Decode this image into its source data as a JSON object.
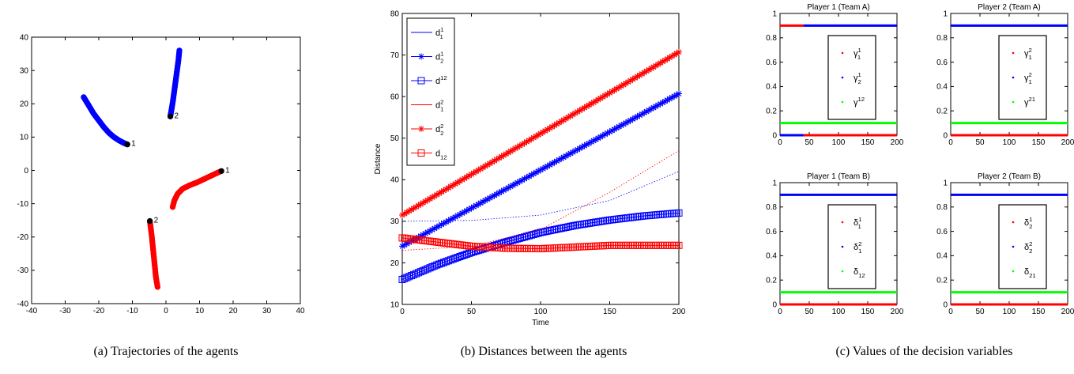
{
  "captions": {
    "a": "(a) Trajectories of the agents",
    "b": "(b) Distances between the agents",
    "c": "(c) Values of the decision variables"
  },
  "chart_data": [
    {
      "id": "trajectories",
      "type": "scatter",
      "xlim": [
        -40,
        40
      ],
      "ylim": [
        -40,
        40
      ],
      "xticks": [
        -40,
        -30,
        -20,
        -10,
        0,
        10,
        20,
        30,
        40
      ],
      "yticks": [
        -40,
        -30,
        -20,
        -10,
        0,
        10,
        20,
        30,
        40
      ],
      "grid": false,
      "series": [
        {
          "color": "#0000ff",
          "end_label": "1",
          "points": [
            [
              -24.5,
              22
            ],
            [
              -23,
              19.5
            ],
            [
              -21.5,
              17
            ],
            [
              -20,
              15
            ],
            [
              -18.5,
              13
            ],
            [
              -17,
              11.3
            ],
            [
              -15.5,
              10
            ],
            [
              -14,
              9
            ],
            [
              -12.5,
              8.2
            ],
            [
              -11.5,
              7.8
            ]
          ]
        },
        {
          "color": "#0000ff",
          "end_label": "2",
          "points": [
            [
              4,
              36
            ],
            [
              3.7,
              33
            ],
            [
              3.3,
              30
            ],
            [
              2.9,
              27
            ],
            [
              2.5,
              24
            ],
            [
              2.1,
              21
            ],
            [
              1.7,
              18.5
            ],
            [
              1.3,
              16.2
            ]
          ]
        },
        {
          "color": "#ff0000",
          "end_label": "1",
          "points": [
            [
              2,
              -11
            ],
            [
              2.5,
              -9
            ],
            [
              3.5,
              -7
            ],
            [
              5,
              -5.5
            ],
            [
              7,
              -4.5
            ],
            [
              9.5,
              -3.5
            ],
            [
              12,
              -2.3
            ],
            [
              14.5,
              -1.1
            ],
            [
              16.5,
              -0.2
            ]
          ]
        },
        {
          "color": "#ff0000",
          "end_label": "2",
          "points": [
            [
              -2.5,
              -35
            ],
            [
              -3,
              -32
            ],
            [
              -3.3,
              -29
            ],
            [
              -3.6,
              -26
            ],
            [
              -3.9,
              -23
            ],
            [
              -4.2,
              -20
            ],
            [
              -4.5,
              -17.5
            ],
            [
              -4.8,
              -15.2
            ]
          ]
        }
      ]
    },
    {
      "id": "distances",
      "type": "line",
      "xlabel": "Time",
      "ylabel": "Distance",
      "xlim": [
        0,
        200
      ],
      "ylim": [
        10,
        80
      ],
      "xticks": [
        0,
        50,
        100,
        150,
        200
      ],
      "yticks": [
        10,
        20,
        30,
        40,
        50,
        60,
        70,
        80
      ],
      "legend": "top-left",
      "series": [
        {
          "name": "d",
          "sup": "1",
          "sub": "1",
          "color": "#0000ff",
          "style": "dotted",
          "points": [
            [
              0,
              30
            ],
            [
              50,
              30.2
            ],
            [
              100,
              31.5
            ],
            [
              150,
              35
            ],
            [
              200,
              42
            ]
          ]
        },
        {
          "name": "d",
          "sup": "1",
          "sub": "2",
          "color": "#0000ff",
          "marker": "star",
          "points": [
            [
              0,
              24
            ],
            [
              200,
              60.7
            ]
          ]
        },
        {
          "name": "d",
          "sup": "12",
          "sub": "",
          "color": "#0000ff",
          "marker": "square",
          "points": [
            [
              0,
              16
            ],
            [
              25,
              19.5
            ],
            [
              50,
              22.5
            ],
            [
              75,
              25
            ],
            [
              100,
              27.3
            ],
            [
              125,
              29
            ],
            [
              150,
              30.3
            ],
            [
              175,
              31.3
            ],
            [
              200,
              32
            ]
          ]
        },
        {
          "name": "d",
          "sup": "2",
          "sub": "1",
          "color": "#ff0000",
          "style": "dotted",
          "points": [
            [
              0,
              23
            ],
            [
              50,
              24
            ],
            [
              100,
              28
            ],
            [
              150,
              37
            ],
            [
              200,
              47
            ]
          ]
        },
        {
          "name": "d",
          "sup": "2",
          "sub": "2",
          "color": "#ff0000",
          "marker": "star",
          "points": [
            [
              0,
              31.5
            ],
            [
              200,
              70.7
            ]
          ]
        },
        {
          "name": "d",
          "sup": "",
          "sub": "12",
          "color": "#ff0000",
          "marker": "square",
          "points": [
            [
              0,
              26
            ],
            [
              25,
              25
            ],
            [
              50,
              24
            ],
            [
              75,
              23.5
            ],
            [
              100,
              23.4
            ],
            [
              125,
              23.8
            ],
            [
              150,
              24.2
            ],
            [
              175,
              24.2
            ],
            [
              200,
              24.2
            ]
          ]
        }
      ]
    },
    {
      "id": "player1-teamA",
      "type": "scatter",
      "title": "Player 1 (Team A)",
      "xlim": [
        0,
        200
      ],
      "ylim": [
        0,
        1
      ],
      "xticks": [
        0,
        50,
        100,
        150,
        200
      ],
      "yticks": [
        0,
        0.2,
        0.4,
        0.6,
        0.8,
        1
      ],
      "series": [
        {
          "name": "γ",
          "sup": "1",
          "sub": "1",
          "color": "#ff0000",
          "segments": [
            [
              0,
              40,
              0.9
            ],
            [
              40,
              200,
              0
            ]
          ]
        },
        {
          "name": "γ",
          "sup": "1",
          "sub": "2",
          "color": "#0000ff",
          "segments": [
            [
              0,
              40,
              0
            ],
            [
              40,
              200,
              0.9
            ]
          ]
        },
        {
          "name": "γ",
          "sup": "12",
          "sub": "",
          "color": "#00ff00",
          "segments": [
            [
              0,
              200,
              0.1
            ]
          ]
        }
      ]
    },
    {
      "id": "player2-teamA",
      "type": "scatter",
      "title": "Player 2 (Team A)",
      "xlim": [
        0,
        200
      ],
      "ylim": [
        0,
        1
      ],
      "xticks": [
        0,
        50,
        100,
        150,
        200
      ],
      "yticks": [
        0,
        0.2,
        0.4,
        0.6,
        0.8,
        1
      ],
      "series": [
        {
          "name": "γ",
          "sup": "2",
          "sub": "1",
          "color": "#ff0000",
          "segments": [
            [
              0,
              200,
              0
            ]
          ]
        },
        {
          "name": "γ",
          "sup": "2",
          "sub": "1",
          "color": "#0000ff",
          "segments": [
            [
              0,
              200,
              0.9
            ]
          ]
        },
        {
          "name": "γ",
          "sup": "21",
          "sub": "",
          "color": "#00ff00",
          "segments": [
            [
              0,
              200,
              0.1
            ]
          ]
        }
      ]
    },
    {
      "id": "player1-teamB",
      "type": "scatter",
      "title": "Player 1 (Team B)",
      "xlim": [
        0,
        200
      ],
      "ylim": [
        0,
        1
      ],
      "xticks": [
        0,
        50,
        100,
        150,
        200
      ],
      "yticks": [
        0,
        0.2,
        0.4,
        0.6,
        0.8,
        1
      ],
      "series": [
        {
          "name": "δ",
          "sup": "1",
          "sub": "1",
          "color": "#ff0000",
          "segments": [
            [
              0,
              200,
              0
            ]
          ]
        },
        {
          "name": "δ",
          "sup": "2",
          "sub": "1",
          "color": "#0000ff",
          "segments": [
            [
              0,
              200,
              0.9
            ]
          ]
        },
        {
          "name": "δ",
          "sup": "",
          "sub": "12",
          "color": "#00ff00",
          "segments": [
            [
              0,
              200,
              0.1
            ]
          ]
        }
      ]
    },
    {
      "id": "player2-teamB",
      "type": "scatter",
      "title": "Player 2 (Team B)",
      "xlim": [
        0,
        200
      ],
      "ylim": [
        0,
        1
      ],
      "xticks": [
        0,
        50,
        100,
        150,
        200
      ],
      "yticks": [
        0,
        0.2,
        0.4,
        0.6,
        0.8,
        1
      ],
      "series": [
        {
          "name": "δ",
          "sup": "1",
          "sub": "2",
          "color": "#ff0000",
          "segments": [
            [
              0,
              200,
              0
            ]
          ]
        },
        {
          "name": "δ",
          "sup": "2",
          "sub": "2",
          "color": "#0000ff",
          "segments": [
            [
              0,
              200,
              0.9
            ]
          ]
        },
        {
          "name": "δ",
          "sup": "",
          "sub": "21",
          "color": "#00ff00",
          "segments": [
            [
              0,
              200,
              0.1
            ]
          ]
        }
      ]
    }
  ]
}
